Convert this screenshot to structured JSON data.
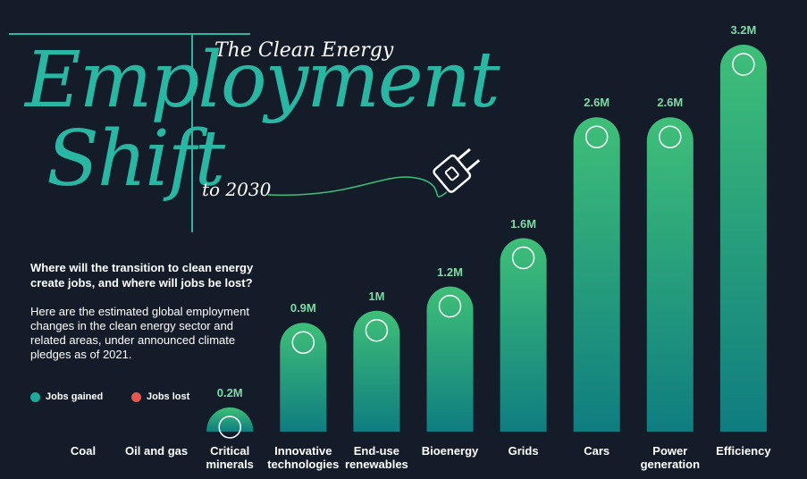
{
  "chart_data": {
    "type": "bar",
    "title_small": "The Clean Energy",
    "title_main": "Employment",
    "title_second": "Shift",
    "title_suffix": "to 2030",
    "subtitle": "Where will the transition to clean energy create jobs, and where will jobs be lost?",
    "description": "Here are the estimated global employment changes in the clean energy sector and related areas, under announced climate pledges as of 2021.",
    "legend": [
      "Jobs gained",
      "Jobs lost"
    ],
    "legend_colors": [
      "#1fa99a",
      "#e8554e"
    ],
    "categories": [
      "Coal",
      "Oil and gas",
      "Critical minerals",
      "Innovative technologies",
      "End-use renewables",
      "Bioenergy",
      "Grids",
      "Cars",
      "Power generation",
      "Efficiency"
    ],
    "values": [
      null,
      null,
      0.2,
      0.9,
      1,
      1.2,
      1.6,
      2.6,
      2.6,
      3.2
    ],
    "value_labels": [
      null,
      null,
      "0.2M",
      "0.9M",
      "1M",
      "1.2M",
      "1.6M",
      "2.6M",
      "2.6M",
      "3.2M"
    ],
    "color_top": "#3fbf78",
    "color_bottom": "#0f7d80"
  }
}
